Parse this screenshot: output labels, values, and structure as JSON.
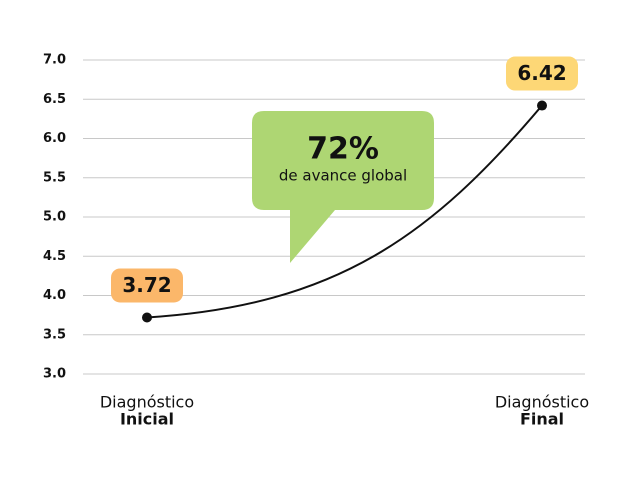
{
  "chart_data": {
    "type": "line",
    "categories": [
      [
        "Diagnóstico",
        "Inicial"
      ],
      [
        "Diagnóstico",
        "Final"
      ]
    ],
    "values": [
      3.72,
      6.42
    ],
    "color": "#111111",
    "value_label_colors": [
      "#fbb76a",
      "#fdd776"
    ],
    "annotation": {
      "headline": "72%",
      "text": "de avance global",
      "color": "#aed673"
    },
    "ylim": [
      3.0,
      7.0
    ],
    "yticks": [
      {
        "value": 3.0,
        "label": "3.0"
      },
      3.5,
      {
        "value": 4.0,
        "label": "4.0"
      },
      4.5,
      {
        "value": 5.0,
        "label": "5.0"
      },
      5.5,
      {
        "value": 6.0,
        "label": "6.0"
      },
      6.5,
      {
        "value": 7.0,
        "label": "7.0"
      }
    ],
    "grid": true
  }
}
